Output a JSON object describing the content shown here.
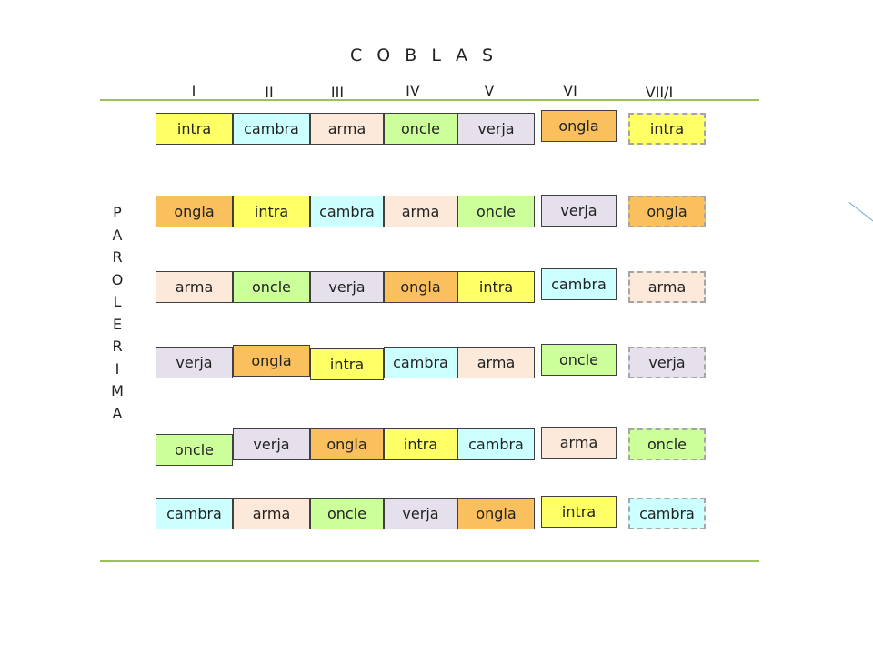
{
  "title": "C O B L A S",
  "columns": [
    "I",
    "II",
    "III",
    "IV",
    "V",
    "VI",
    "VII/I"
  ],
  "side_label": [
    "P",
    "A",
    "R",
    "O",
    "L",
    "E",
    "",
    "R",
    "I",
    "M",
    "A"
  ],
  "colors": {
    "intra": "#ffff66",
    "cambra": "#ccffff",
    "arma": "#fde9d9",
    "oncle": "#ccff99",
    "verja": "#e6e0ec",
    "ongla": "#fac05e",
    "rule": "#9bc25a"
  },
  "rows": [
    [
      "intra",
      "cambra",
      "arma",
      "oncle",
      "verja",
      "ongla",
      "intra"
    ],
    [
      "ongla",
      "intra",
      "cambra",
      "arma",
      "oncle",
      "verja",
      "ongla"
    ],
    [
      "arma",
      "oncle",
      "verja",
      "ongla",
      "intra",
      "cambra",
      "arma"
    ],
    [
      "verja",
      "ongla",
      "intra",
      "cambra",
      "arma",
      "oncle",
      "verja"
    ],
    [
      "oncle",
      "verja",
      "ongla",
      "intra",
      "cambra",
      "arma",
      "oncle"
    ],
    [
      "cambra",
      "arma",
      "oncle",
      "verja",
      "ongla",
      "intra",
      "cambra"
    ]
  ]
}
